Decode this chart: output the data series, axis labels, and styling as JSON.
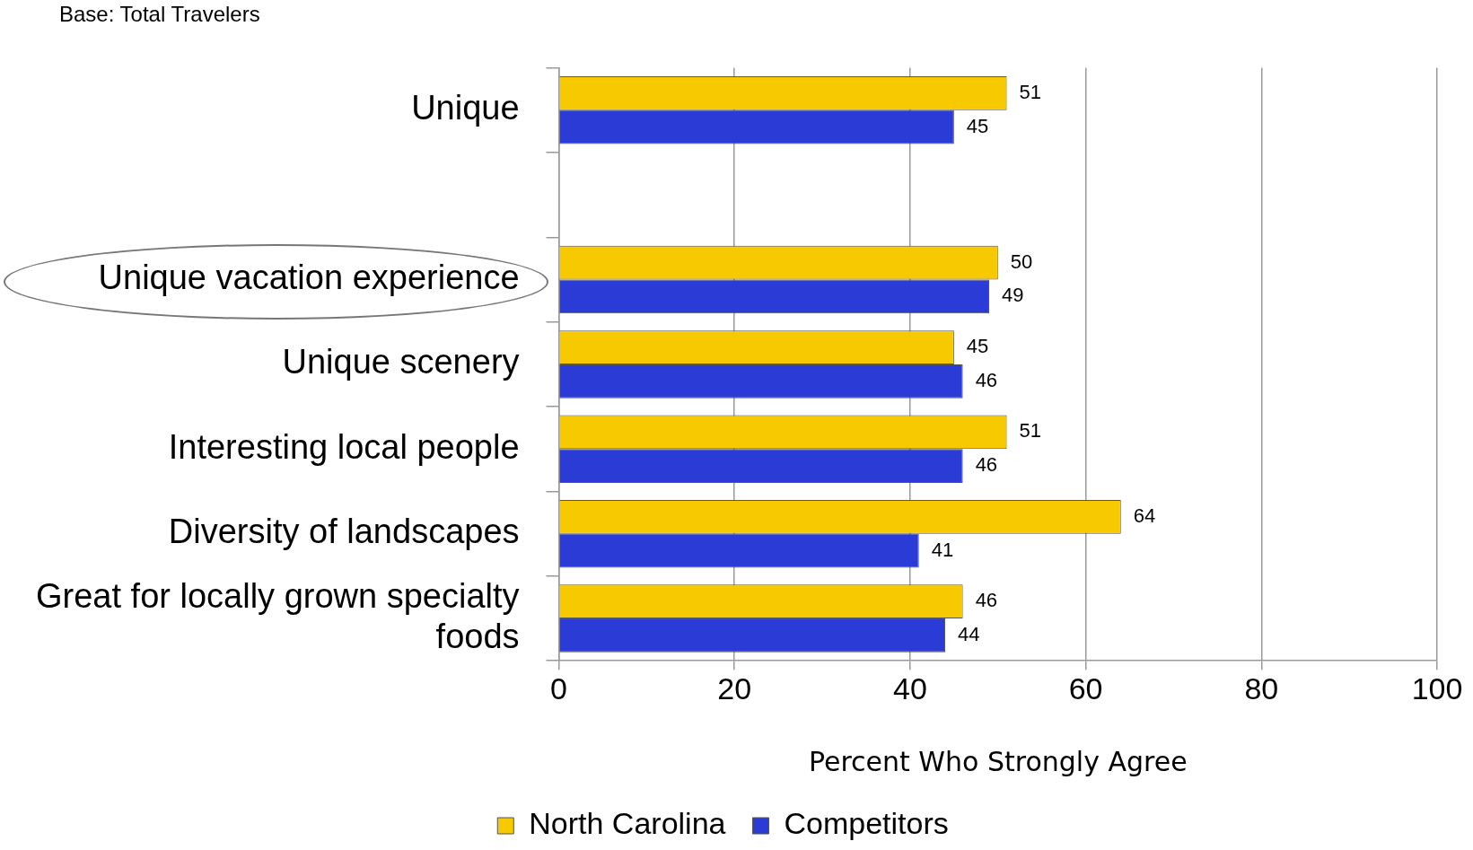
{
  "chart_data": {
    "type": "bar",
    "orientation": "horizontal",
    "categories": [
      "Unique",
      null,
      "Unique vacation experience",
      "Unique scenery",
      "Interesting local people",
      "Diversity of landscapes",
      "Great for locally grown specialty foods"
    ],
    "series": [
      {
        "name": "North Carolina",
        "color": "#f7c900",
        "values": [
          51,
          null,
          50,
          45,
          51,
          64,
          46
        ]
      },
      {
        "name": "Competitors",
        "color": "#2b3bd6",
        "values": [
          45,
          null,
          49,
          46,
          46,
          41,
          44
        ]
      }
    ],
    "xlabel": "Percent Who Strongly Agree",
    "xlim": [
      0,
      100
    ],
    "xticks": [
      0,
      20,
      40,
      60,
      80,
      100
    ],
    "grid": "x",
    "legend": "bottom",
    "data_labels": true,
    "annotations": [
      "Base: Total Travelers"
    ]
  }
}
